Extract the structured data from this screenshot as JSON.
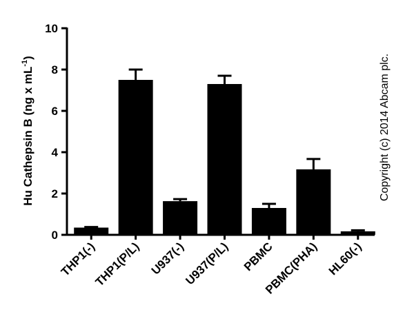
{
  "chart_data": {
    "type": "bar",
    "y_label": "Hu Cathepsin B (ng x mL",
    "y_label_sup": "-1",
    "y_label_end": ")",
    "annotation": "Copyright (c) 2014 Abcam plc.",
    "categories": [
      "THP1(-)",
      "THP1(P/L)",
      "U937(-)",
      "U937(P/L)",
      "PBMC",
      "PBMC(PHA)",
      "HL60(-)"
    ],
    "values": [
      0.35,
      7.5,
      1.63,
      7.3,
      1.3,
      3.17,
      0.17
    ],
    "errors": [
      0.03,
      0.5,
      0.1,
      0.4,
      0.2,
      0.5,
      0.05
    ],
    "color": "#000000",
    "ylim": [
      0,
      10
    ],
    "yticks": [
      0,
      2,
      4,
      6,
      8,
      10
    ],
    "grid": false
  }
}
